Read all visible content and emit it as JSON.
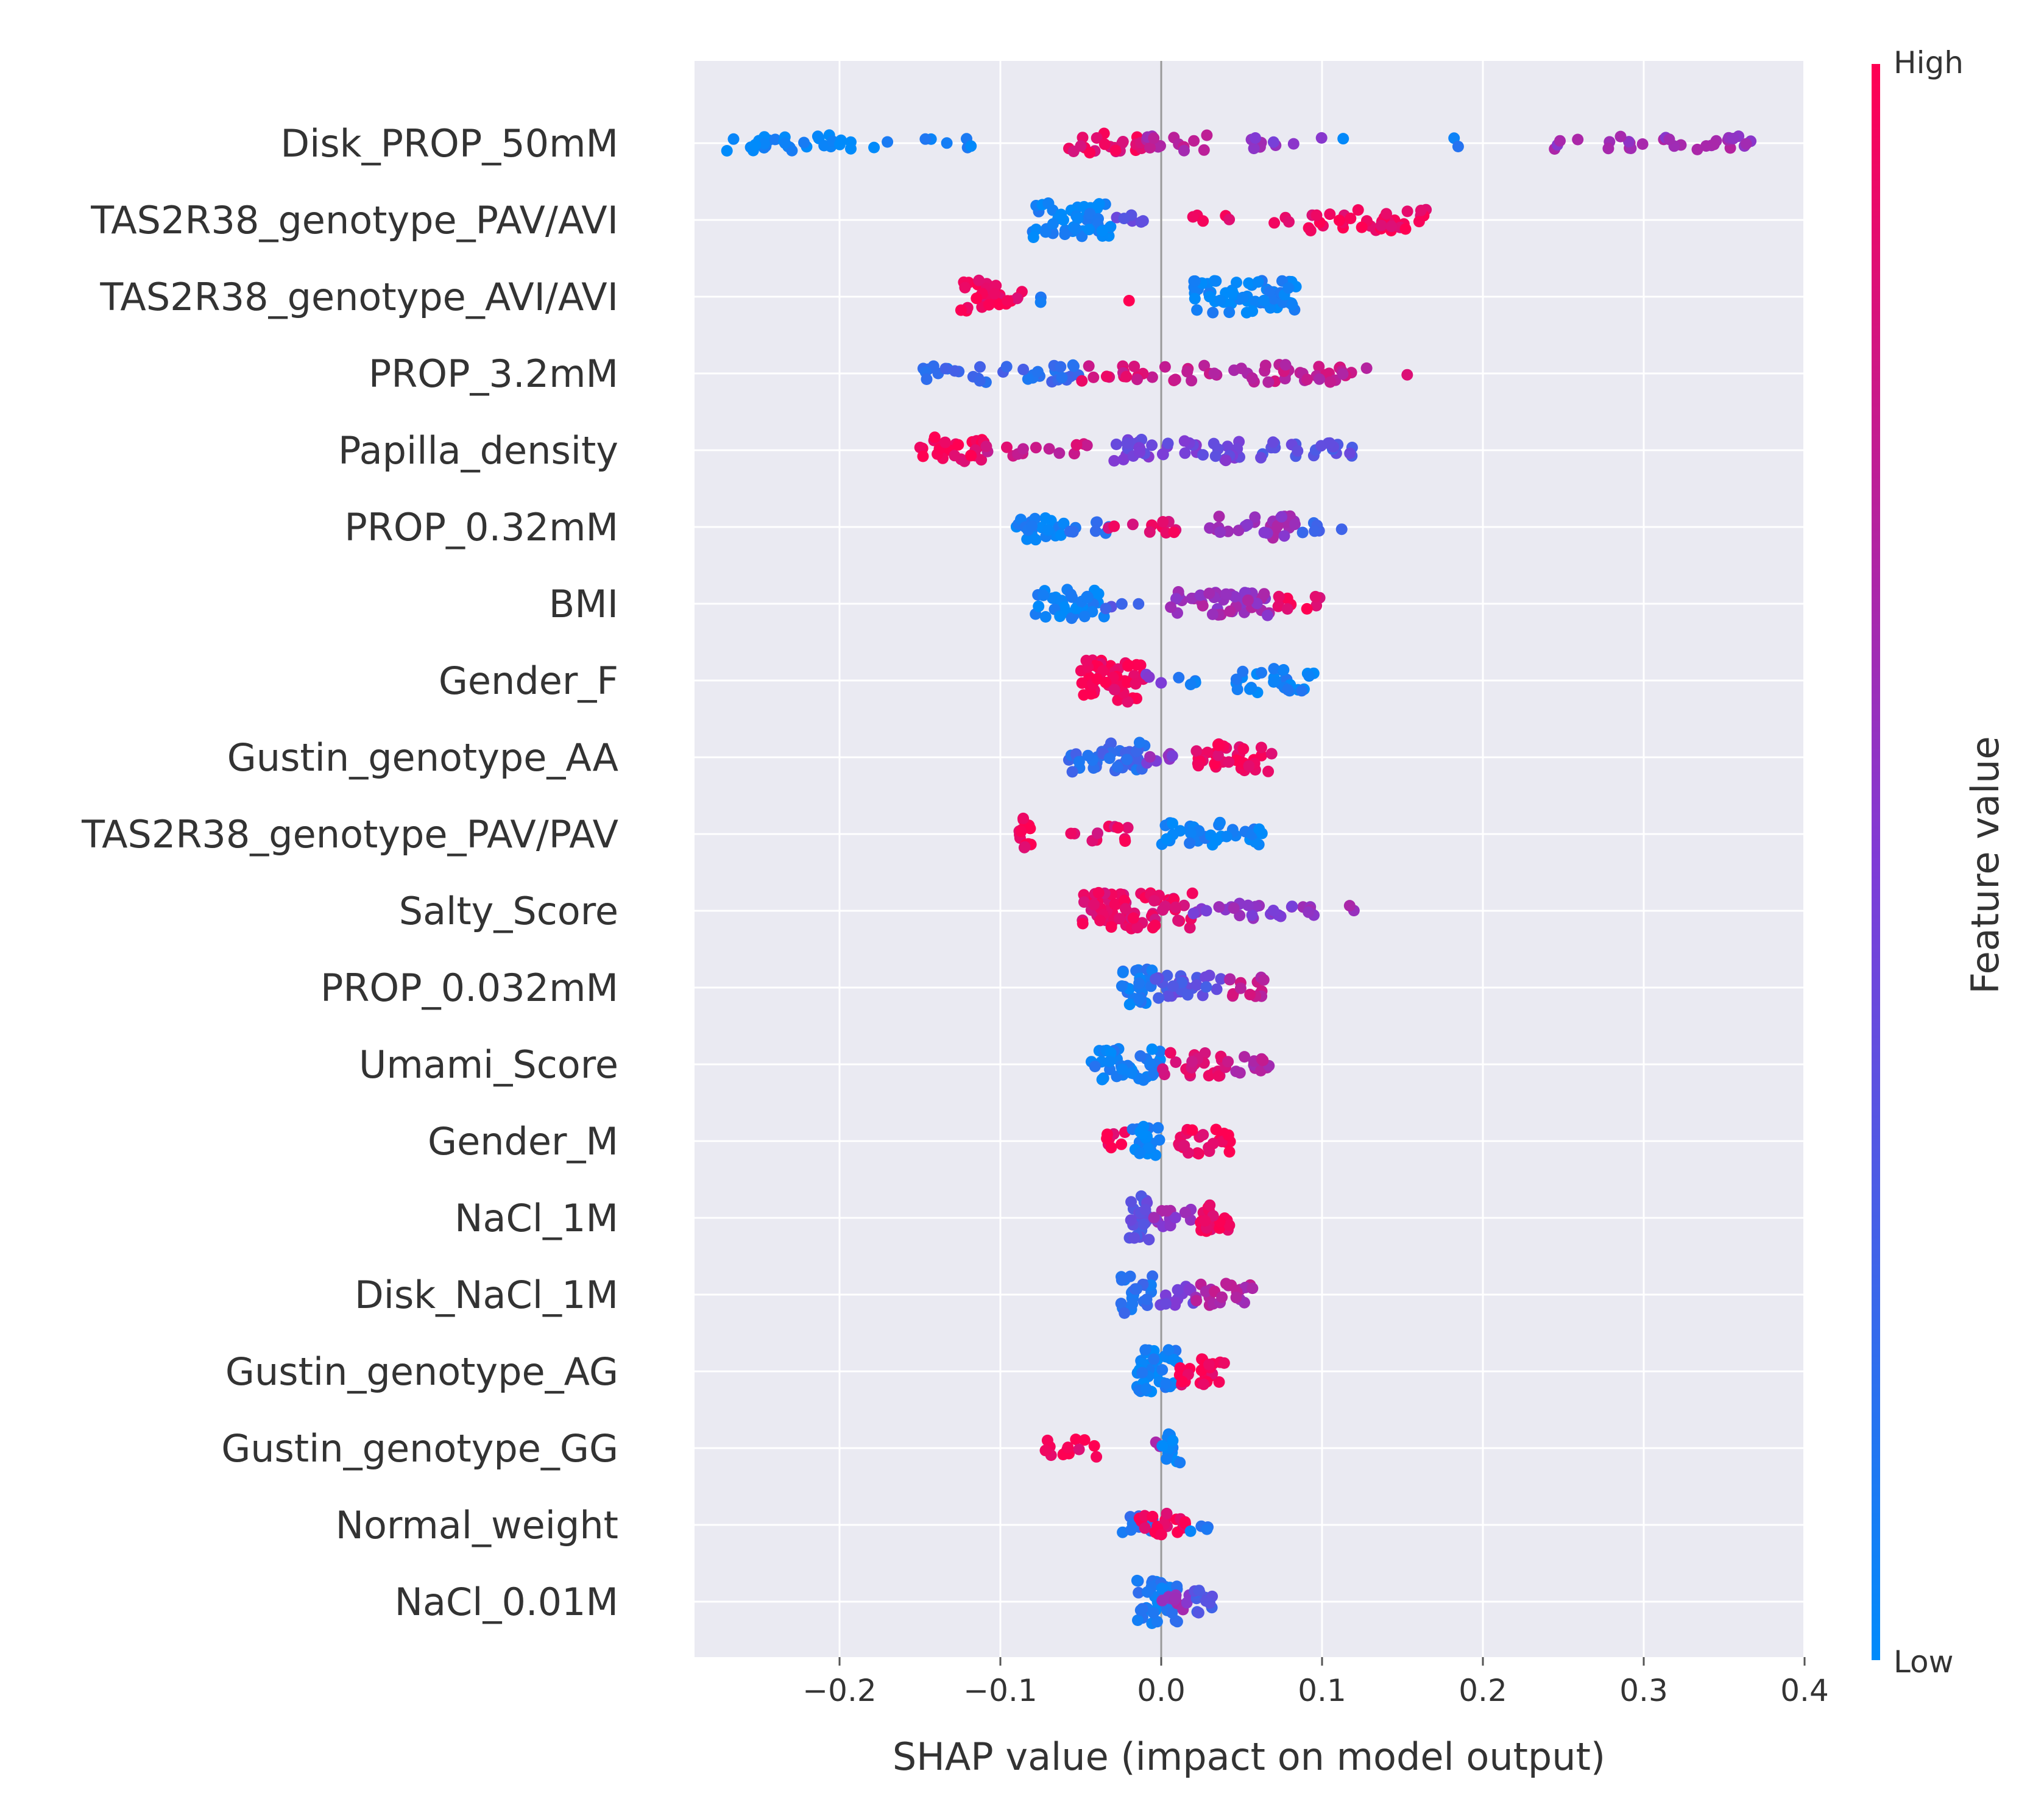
{
  "chart_data": {
    "type": "scatter",
    "subtype": "shap-beeswarm",
    "title": "",
    "xlabel": "SHAP value (impact on model output)",
    "ylabel": "",
    "xlim": [
      -0.29,
      0.4
    ],
    "xticks": [
      -0.2,
      -0.1,
      0.0,
      0.1,
      0.2,
      0.3,
      0.4
    ],
    "xtick_labels": [
      "−0.2",
      "−0.1",
      "0.0",
      "0.1",
      "0.2",
      "0.3",
      "0.4"
    ],
    "grid": true,
    "colorbar": {
      "label": "Feature value",
      "high_label": "High",
      "low_label": "Low",
      "low_color": "#008bfb",
      "high_color": "#ff0052"
    },
    "features": [
      {
        "name": "Disk_PROP_50mM",
        "clusters": [
          {
            "lo": -0.27,
            "hi": -0.2,
            "n": 26,
            "c": 0.02
          },
          {
            "lo": -0.2,
            "hi": -0.11,
            "n": 12,
            "c": 0.05
          },
          {
            "lo": -0.06,
            "hi": -0.01,
            "n": 22,
            "c": 0.9
          },
          {
            "lo": -0.01,
            "hi": 0.03,
            "n": 14,
            "c": 0.7
          },
          {
            "lo": 0.05,
            "hi": 0.1,
            "n": 9,
            "c": 0.55
          },
          {
            "lo": 0.11,
            "hi": 0.12,
            "n": 1,
            "c": 0.1
          },
          {
            "lo": 0.18,
            "hi": 0.185,
            "n": 2,
            "c": 0.1
          },
          {
            "lo": 0.23,
            "hi": 0.37,
            "n": 30,
            "c": 0.62
          }
        ]
      },
      {
        "name": "TAS2R38_genotype_PAV/AVI",
        "clusters": [
          {
            "lo": -0.08,
            "hi": -0.03,
            "n": 50,
            "c": 0.05
          },
          {
            "lo": -0.03,
            "hi": -0.01,
            "n": 6,
            "c": 0.4
          },
          {
            "lo": 0.01,
            "hi": 0.09,
            "n": 8,
            "c": 0.95
          },
          {
            "lo": 0.09,
            "hi": 0.165,
            "n": 38,
            "c": 0.95
          }
        ]
      },
      {
        "name": "TAS2R38_genotype_AVI/AVI",
        "clusters": [
          {
            "lo": -0.125,
            "hi": -0.1,
            "n": 26,
            "c": 0.95
          },
          {
            "lo": -0.1,
            "hi": -0.085,
            "n": 6,
            "c": 0.95
          },
          {
            "lo": -0.075,
            "hi": -0.07,
            "n": 2,
            "c": 0.05
          },
          {
            "lo": -0.02,
            "hi": -0.02,
            "n": 1,
            "c": 0.95
          },
          {
            "lo": 0.02,
            "hi": 0.085,
            "n": 60,
            "c": 0.05
          }
        ]
      },
      {
        "name": "PROP_3.2mM",
        "clusters": [
          {
            "lo": -0.15,
            "hi": -0.05,
            "n": 36,
            "c": 0.2
          },
          {
            "lo": -0.05,
            "hi": 0.0,
            "n": 16,
            "c": 0.85
          },
          {
            "lo": 0.0,
            "hi": 0.13,
            "n": 44,
            "c": 0.75
          },
          {
            "lo": 0.15,
            "hi": 0.155,
            "n": 1,
            "c": 0.95
          }
        ]
      },
      {
        "name": "Papilla_density",
        "clusters": [
          {
            "lo": -0.15,
            "hi": -0.11,
            "n": 28,
            "c": 0.95
          },
          {
            "lo": -0.11,
            "hi": -0.04,
            "n": 14,
            "c": 0.8
          },
          {
            "lo": -0.03,
            "hi": 0.05,
            "n": 40,
            "c": 0.45
          },
          {
            "lo": 0.05,
            "hi": 0.12,
            "n": 22,
            "c": 0.35
          }
        ]
      },
      {
        "name": "PROP_0.32mM",
        "clusters": [
          {
            "lo": -0.09,
            "hi": -0.06,
            "n": 24,
            "c": 0.05
          },
          {
            "lo": -0.06,
            "hi": -0.03,
            "n": 8,
            "c": 0.15
          },
          {
            "lo": -0.04,
            "hi": 0.01,
            "n": 12,
            "c": 0.9
          },
          {
            "lo": 0.03,
            "hi": 0.085,
            "n": 30,
            "c": 0.6
          },
          {
            "lo": 0.085,
            "hi": 0.115,
            "n": 6,
            "c": 0.2
          }
        ]
      },
      {
        "name": "BMI",
        "clusters": [
          {
            "lo": -0.08,
            "hi": -0.035,
            "n": 38,
            "c": 0.05
          },
          {
            "lo": -0.035,
            "hi": -0.01,
            "n": 4,
            "c": 0.3
          },
          {
            "lo": 0.0,
            "hi": 0.07,
            "n": 42,
            "c": 0.62
          },
          {
            "lo": 0.07,
            "hi": 0.105,
            "n": 10,
            "c": 0.92
          }
        ]
      },
      {
        "name": "Gender_F",
        "clusters": [
          {
            "lo": -0.05,
            "hi": -0.01,
            "n": 55,
            "c": 0.95
          },
          {
            "lo": -0.01,
            "hi": 0.0,
            "n": 3,
            "c": 0.5
          },
          {
            "lo": 0.01,
            "hi": 0.03,
            "n": 4,
            "c": 0.1
          },
          {
            "lo": 0.045,
            "hi": 0.095,
            "n": 30,
            "c": 0.05
          }
        ]
      },
      {
        "name": "Gustin_genotype_AA",
        "clusters": [
          {
            "lo": -0.06,
            "hi": -0.01,
            "n": 40,
            "c": 0.2
          },
          {
            "lo": -0.01,
            "hi": 0.02,
            "n": 8,
            "c": 0.55
          },
          {
            "lo": 0.02,
            "hi": 0.07,
            "n": 38,
            "c": 0.95
          }
        ]
      },
      {
        "name": "TAS2R38_genotype_PAV/PAV",
        "clusters": [
          {
            "lo": -0.09,
            "hi": -0.08,
            "n": 14,
            "c": 0.95
          },
          {
            "lo": -0.06,
            "hi": -0.02,
            "n": 12,
            "c": 0.9
          },
          {
            "lo": 0.0,
            "hi": 0.065,
            "n": 36,
            "c": 0.05
          }
        ]
      },
      {
        "name": "Salty_Score",
        "clusters": [
          {
            "lo": -0.05,
            "hi": 0.02,
            "n": 70,
            "c": 0.9
          },
          {
            "lo": 0.02,
            "hi": 0.09,
            "n": 24,
            "c": 0.55
          },
          {
            "lo": 0.09,
            "hi": 0.125,
            "n": 6,
            "c": 0.6
          }
        ]
      },
      {
        "name": "PROP_0.032mM",
        "clusters": [
          {
            "lo": -0.025,
            "hi": -0.005,
            "n": 26,
            "c": 0.1
          },
          {
            "lo": -0.005,
            "hi": 0.04,
            "n": 28,
            "c": 0.35
          },
          {
            "lo": 0.04,
            "hi": 0.065,
            "n": 14,
            "c": 0.75
          }
        ]
      },
      {
        "name": "Umami_Score",
        "clusters": [
          {
            "lo": -0.045,
            "hi": 0.0,
            "n": 40,
            "c": 0.08
          },
          {
            "lo": 0.0,
            "hi": 0.04,
            "n": 24,
            "c": 0.85
          },
          {
            "lo": 0.04,
            "hi": 0.07,
            "n": 12,
            "c": 0.7
          }
        ]
      },
      {
        "name": "Gender_M",
        "clusters": [
          {
            "lo": -0.035,
            "hi": -0.02,
            "n": 8,
            "c": 0.95
          },
          {
            "lo": -0.02,
            "hi": 0.0,
            "n": 20,
            "c": 0.05
          },
          {
            "lo": 0.01,
            "hi": 0.045,
            "n": 26,
            "c": 0.95
          }
        ]
      },
      {
        "name": "NaCl_1M",
        "clusters": [
          {
            "lo": -0.02,
            "hi": -0.005,
            "n": 26,
            "c": 0.35
          },
          {
            "lo": -0.005,
            "hi": 0.02,
            "n": 14,
            "c": 0.6
          },
          {
            "lo": 0.02,
            "hi": 0.045,
            "n": 20,
            "c": 0.95
          }
        ]
      },
      {
        "name": "Disk_NaCl_1M",
        "clusters": [
          {
            "lo": -0.025,
            "hi": -0.005,
            "n": 26,
            "c": 0.15
          },
          {
            "lo": -0.005,
            "hi": 0.02,
            "n": 14,
            "c": 0.45
          },
          {
            "lo": 0.02,
            "hi": 0.06,
            "n": 22,
            "c": 0.7
          }
        ]
      },
      {
        "name": "Gustin_genotype_AG",
        "clusters": [
          {
            "lo": -0.015,
            "hi": 0.01,
            "n": 44,
            "c": 0.05
          },
          {
            "lo": 0.01,
            "hi": 0.04,
            "n": 24,
            "c": 0.95
          }
        ]
      },
      {
        "name": "Gustin_genotype_GG",
        "clusters": [
          {
            "lo": -0.075,
            "hi": -0.04,
            "n": 14,
            "c": 0.95
          },
          {
            "lo": -0.005,
            "hi": 0.0,
            "n": 2,
            "c": 0.6
          },
          {
            "lo": 0.0,
            "hi": 0.012,
            "n": 14,
            "c": 0.05
          }
        ]
      },
      {
        "name": "Normal_weight",
        "clusters": [
          {
            "lo": -0.025,
            "hi": -0.005,
            "n": 10,
            "c": 0.15
          },
          {
            "lo": -0.015,
            "hi": 0.015,
            "n": 22,
            "c": 0.95
          },
          {
            "lo": 0.015,
            "hi": 0.03,
            "n": 4,
            "c": 0.1
          }
        ]
      },
      {
        "name": "NaCl_0.01M",
        "clusters": [
          {
            "lo": -0.015,
            "hi": 0.01,
            "n": 40,
            "c": 0.1
          },
          {
            "lo": 0.0,
            "hi": 0.02,
            "n": 10,
            "c": 0.6
          },
          {
            "lo": 0.015,
            "hi": 0.032,
            "n": 12,
            "c": 0.3
          }
        ]
      }
    ]
  }
}
